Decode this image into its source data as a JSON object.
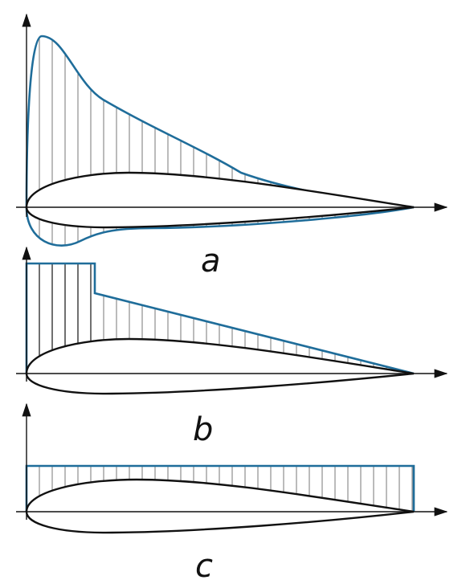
{
  "labels": [
    "a",
    "b",
    "c"
  ]
}
